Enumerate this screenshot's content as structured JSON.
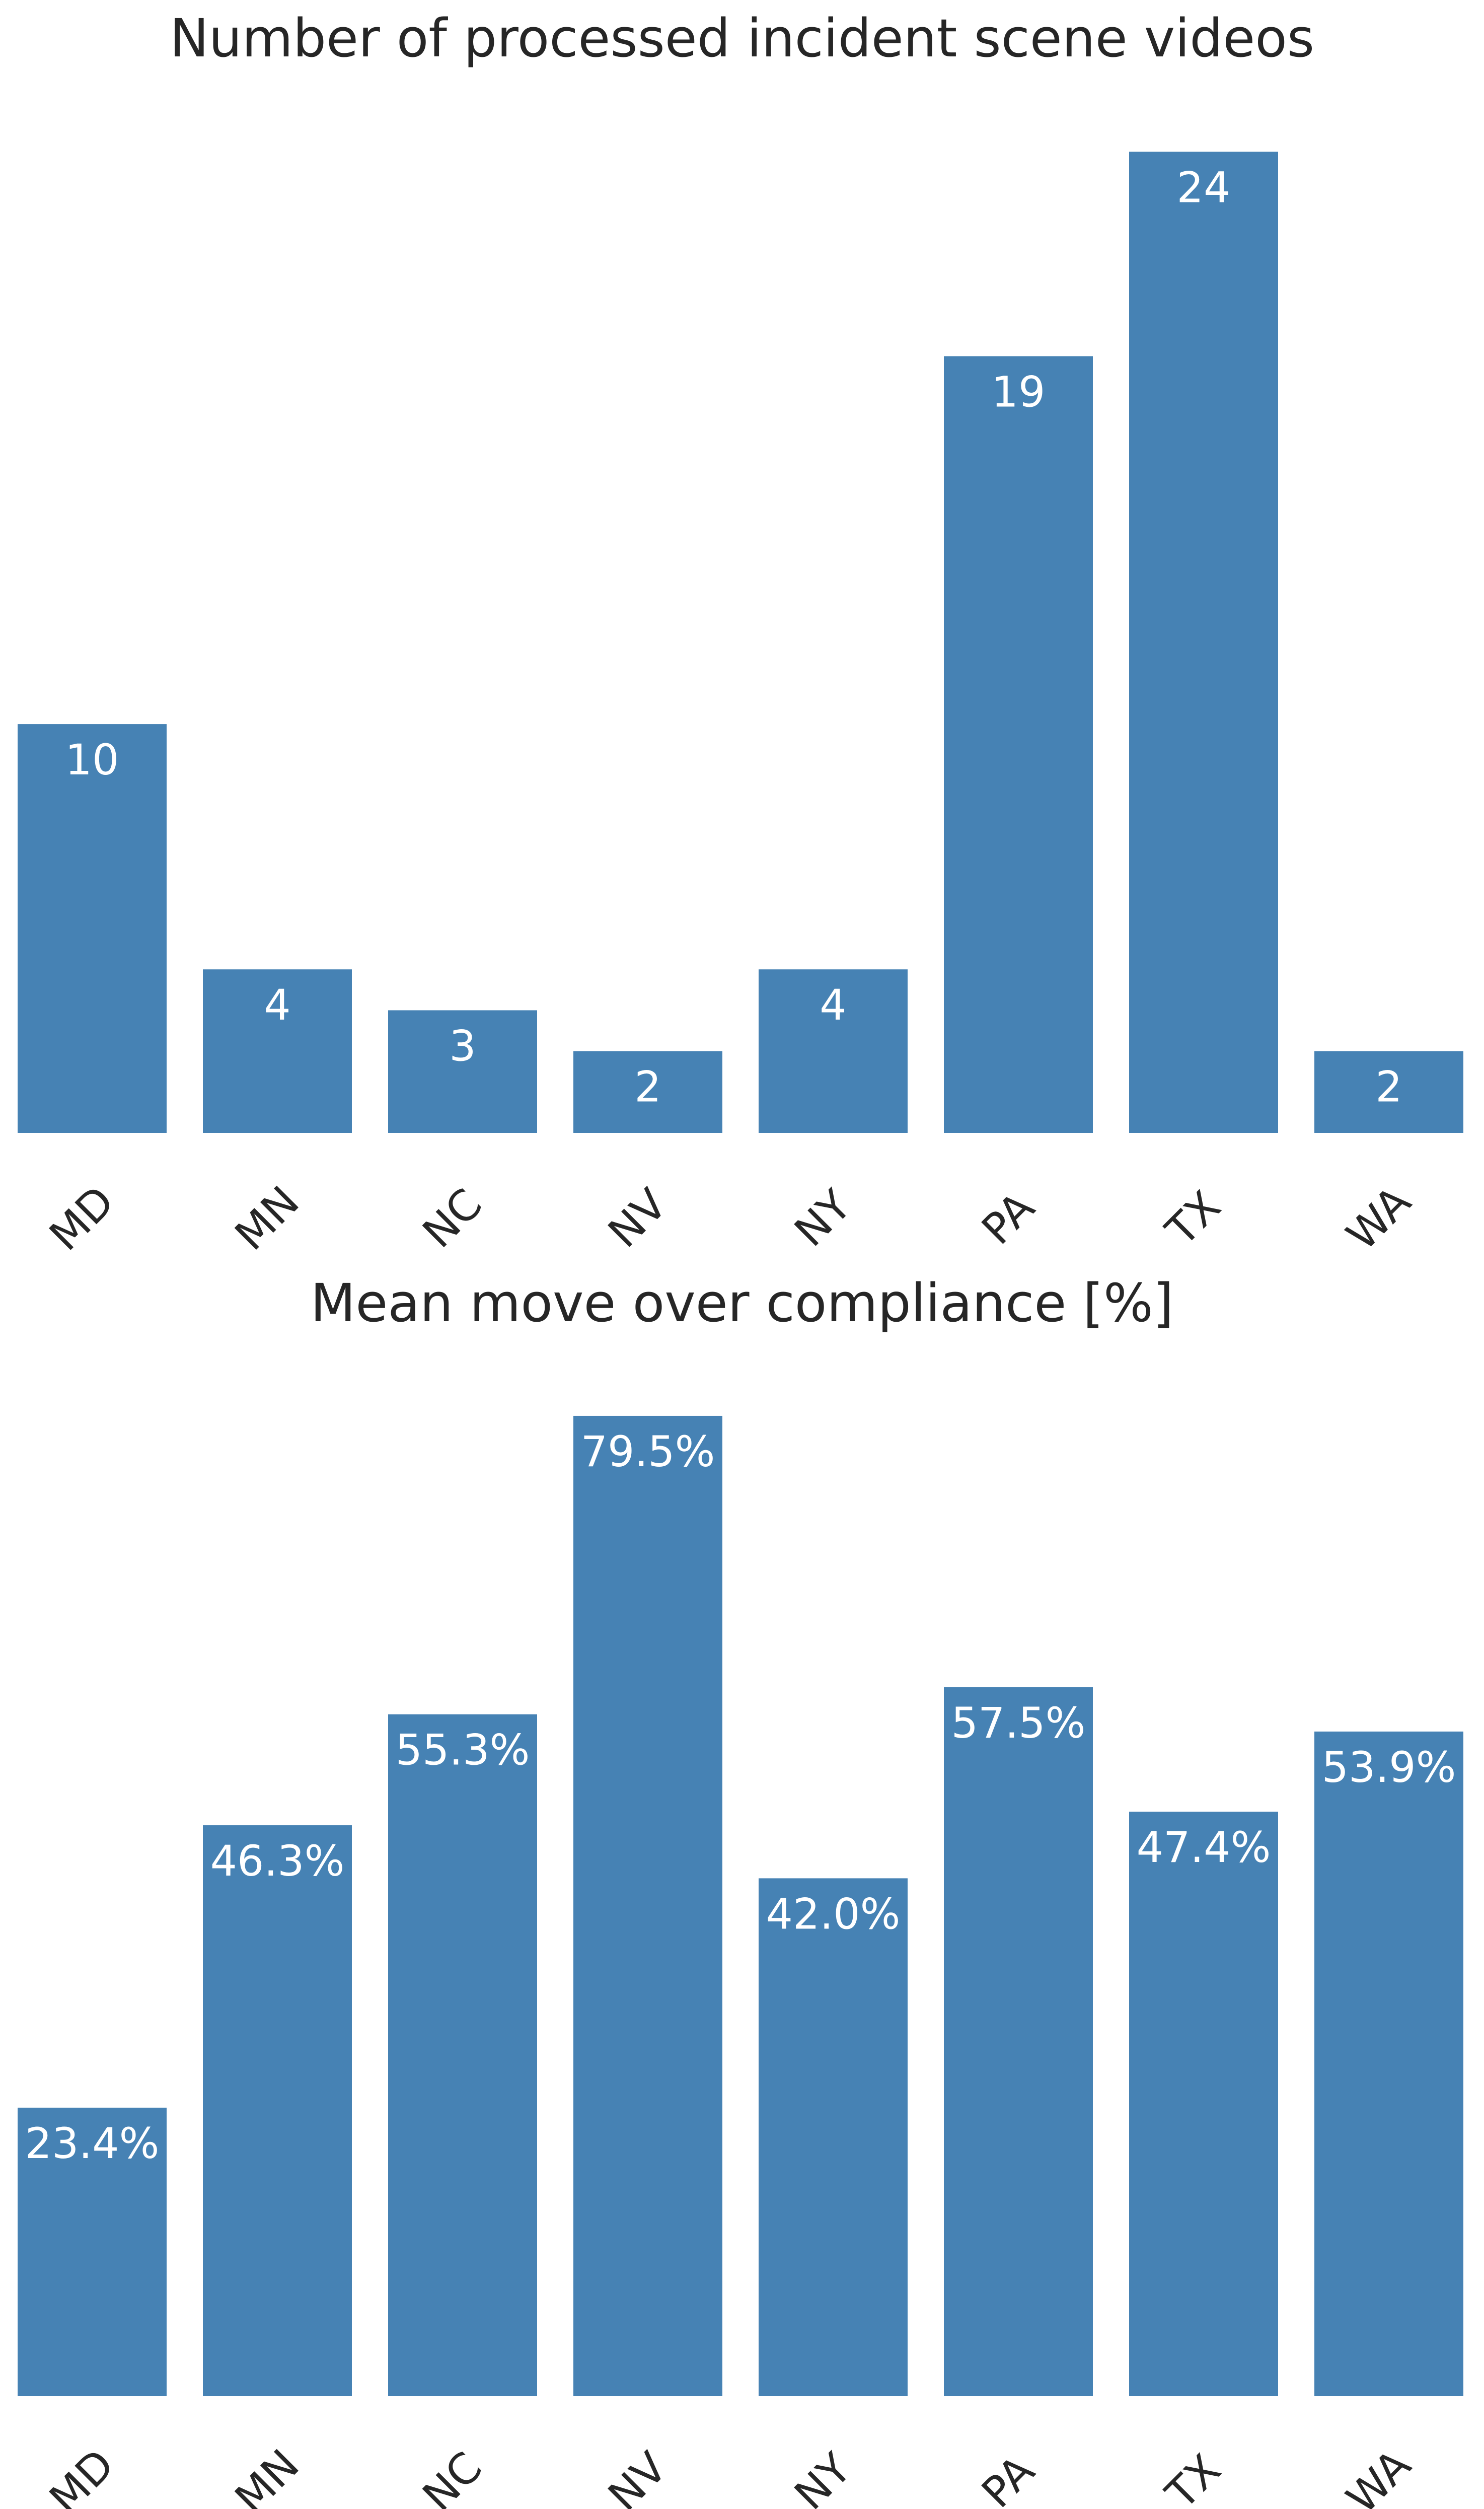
{
  "chart_data": [
    {
      "type": "bar",
      "title": "Number of processed incident scene videos",
      "categories": [
        "MD",
        "MN",
        "NC",
        "NV",
        "NY",
        "PA",
        "TX",
        "WA"
      ],
      "values": [
        10,
        4,
        3,
        2,
        4,
        19,
        24,
        2
      ],
      "value_labels": [
        "10",
        "4",
        "3",
        "2",
        "4",
        "19",
        "24",
        "2"
      ],
      "xlabel": "",
      "ylabel": "",
      "ylim": [
        0,
        25.2
      ],
      "grid": false,
      "bar_color": "#4682b4",
      "label_color": "#ffffff"
    },
    {
      "type": "bar",
      "title": "Mean move over compliance [%]",
      "categories": [
        "MD",
        "MN",
        "NC",
        "NV",
        "NY",
        "PA",
        "TX",
        "WA"
      ],
      "values": [
        23.4,
        46.3,
        55.3,
        79.5,
        42.0,
        57.5,
        47.4,
        53.9
      ],
      "value_labels": [
        "23.4%",
        "46.3%",
        "55.3%",
        "79.5%",
        "42.0%",
        "57.5%",
        "47.4%",
        "53.9%"
      ],
      "xlabel": "",
      "ylabel": "",
      "ylim": [
        0,
        83.5
      ],
      "grid": false,
      "bar_color": "#4682b4",
      "label_color": "#ffffff"
    }
  ]
}
